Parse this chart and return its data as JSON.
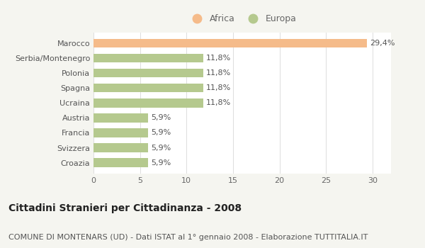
{
  "categories": [
    "Croazia",
    "Svizzera",
    "Francia",
    "Austria",
    "Ucraina",
    "Spagna",
    "Polonia",
    "Serbia/Montenegro",
    "Marocco"
  ],
  "values": [
    5.9,
    5.9,
    5.9,
    5.9,
    11.8,
    11.8,
    11.8,
    11.8,
    29.4
  ],
  "labels": [
    "5,9%",
    "5,9%",
    "5,9%",
    "5,9%",
    "11,8%",
    "11,8%",
    "11,8%",
    "11,8%",
    "29,4%"
  ],
  "colors": [
    "#b5c98e",
    "#b5c98e",
    "#b5c98e",
    "#b5c98e",
    "#b5c98e",
    "#b5c98e",
    "#b5c98e",
    "#b5c98e",
    "#f5bb8a"
  ],
  "legend_africa_color": "#f5bb8a",
  "legend_europa_color": "#b5c98e",
  "xlim": [
    0,
    32
  ],
  "xticks": [
    0,
    5,
    10,
    15,
    20,
    25,
    30
  ],
  "title": "Cittadini Stranieri per Cittadinanza - 2008",
  "subtitle": "COMUNE DI MONTENARS (UD) - Dati ISTAT al 1° gennaio 2008 - Elaborazione TUTTITALIA.IT",
  "background_color": "#f5f5f0",
  "bar_background": "#ffffff",
  "title_fontsize": 10,
  "subtitle_fontsize": 8
}
